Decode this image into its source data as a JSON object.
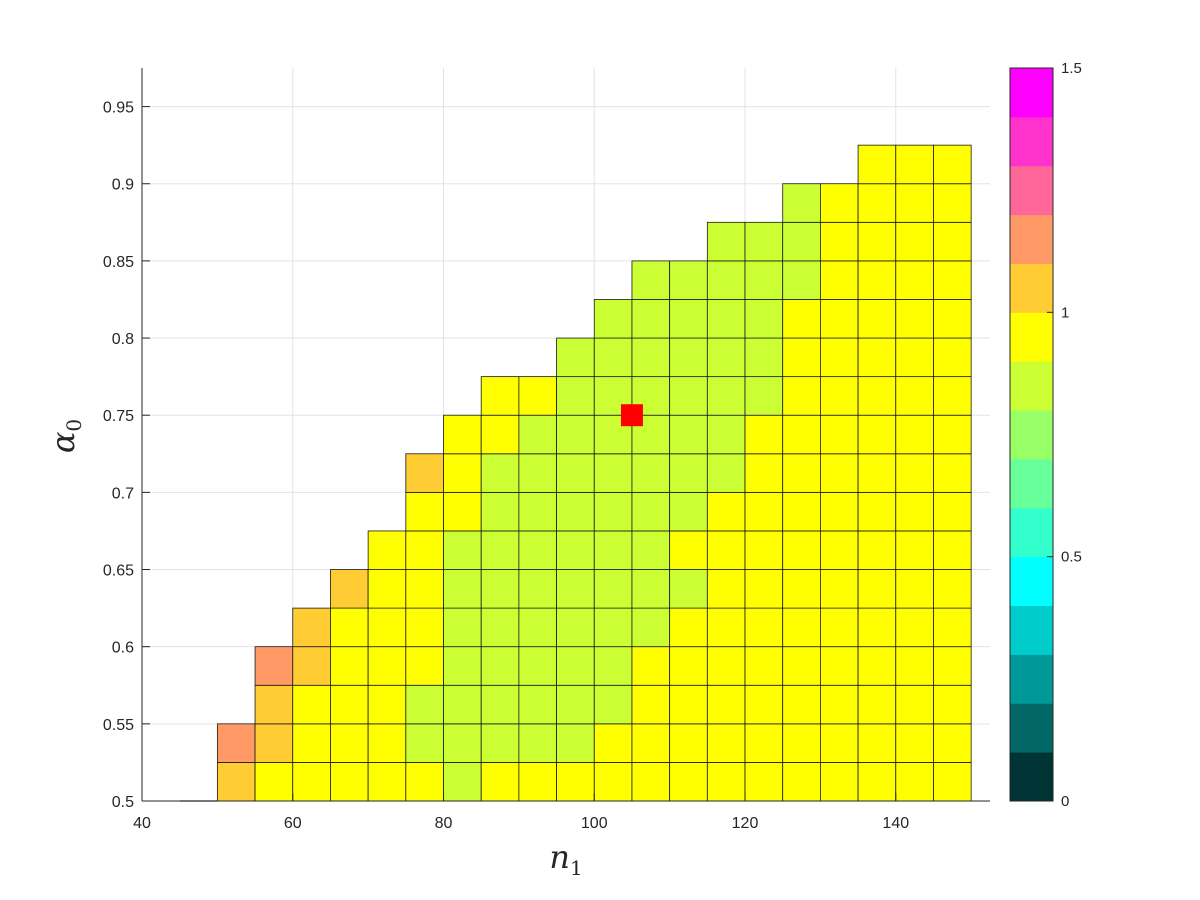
{
  "chart_data": {
    "type": "heatmap",
    "title": "",
    "xlabel": "n",
    "xlabel_sub": "1",
    "ylabel": "α",
    "ylabel_sub": "0",
    "xlim": [
      40,
      152.5
    ],
    "ylim": [
      0.5,
      0.975
    ],
    "xticks": [
      40,
      60,
      80,
      100,
      120,
      140
    ],
    "yticks": [
      0.5,
      0.55,
      0.6,
      0.65,
      0.7,
      0.75,
      0.8,
      0.85,
      0.9,
      0.95
    ],
    "grid": true,
    "cell_width": 5,
    "cell_height": 0.025,
    "x_centers": [
      52.5,
      57.5,
      62.5,
      67.5,
      72.5,
      77.5,
      82.5,
      87.5,
      92.5,
      97.5,
      102.5,
      107.5,
      112.5,
      117.5,
      122.5,
      127.5,
      132.5,
      137.5,
      142.5,
      147.5
    ],
    "rows": [
      {
        "alpha": 0.5125,
        "start": 50,
        "values": [
          1.05,
          0.95,
          0.95,
          0.95,
          0.95,
          0.95,
          0.85,
          0.95,
          0.95,
          0.95,
          0.95,
          0.95,
          0.95,
          0.95,
          0.95,
          0.95,
          0.95,
          0.95,
          0.95,
          0.95
        ]
      },
      {
        "alpha": 0.5375,
        "start": 50,
        "values": [
          1.15,
          1.05,
          0.95,
          0.95,
          0.95,
          0.85,
          0.85,
          0.85,
          0.85,
          0.85,
          0.95,
          0.95,
          0.95,
          0.95,
          0.95,
          0.95,
          0.95,
          0.95,
          0.95,
          0.95
        ]
      },
      {
        "alpha": 0.5625,
        "start": 55,
        "values": [
          1.05,
          0.95,
          0.95,
          0.95,
          0.85,
          0.85,
          0.85,
          0.85,
          0.85,
          0.85,
          0.95,
          0.95,
          0.95,
          0.95,
          0.95,
          0.95,
          0.95,
          0.95,
          0.95
        ]
      },
      {
        "alpha": 0.5875,
        "start": 55,
        "values": [
          1.15,
          1.05,
          0.95,
          0.95,
          0.95,
          0.85,
          0.85,
          0.85,
          0.85,
          0.85,
          0.95,
          0.95,
          0.95,
          0.95,
          0.95,
          0.95,
          0.95,
          0.95,
          0.95
        ]
      },
      {
        "alpha": 0.6125,
        "start": 60,
        "values": [
          1.05,
          0.95,
          0.95,
          0.95,
          0.85,
          0.85,
          0.85,
          0.85,
          0.85,
          0.85,
          0.95,
          0.95,
          0.95,
          0.95,
          0.95,
          0.95,
          0.95,
          0.95
        ]
      },
      {
        "alpha": 0.6375,
        "start": 65,
        "values": [
          1.05,
          0.95,
          0.95,
          0.85,
          0.85,
          0.85,
          0.85,
          0.85,
          0.85,
          0.85,
          0.95,
          0.95,
          0.95,
          0.95,
          0.95,
          0.95,
          0.95
        ]
      },
      {
        "alpha": 0.6625,
        "start": 70,
        "values": [
          0.95,
          0.95,
          0.85,
          0.85,
          0.85,
          0.85,
          0.85,
          0.85,
          0.95,
          0.95,
          0.95,
          0.95,
          0.95,
          0.95,
          0.95,
          0.95
        ]
      },
      {
        "alpha": 0.6875,
        "start": 75,
        "values": [
          0.95,
          0.95,
          0.85,
          0.85,
          0.85,
          0.85,
          0.85,
          0.85,
          0.95,
          0.95,
          0.95,
          0.95,
          0.95,
          0.95,
          0.95
        ]
      },
      {
        "alpha": 0.7125,
        "start": 75,
        "values": [
          1.05,
          0.95,
          0.85,
          0.85,
          0.85,
          0.85,
          0.85,
          0.85,
          0.85,
          0.95,
          0.95,
          0.95,
          0.95,
          0.95,
          0.95
        ]
      },
      {
        "alpha": 0.7375,
        "start": 80,
        "values": [
          0.95,
          0.95,
          0.85,
          0.85,
          0.85,
          0.85,
          0.85,
          0.85,
          0.95,
          0.95,
          0.95,
          0.95,
          0.95,
          0.95
        ]
      },
      {
        "alpha": 0.7625,
        "start": 85,
        "values": [
          0.95,
          0.95,
          0.85,
          0.85,
          0.85,
          0.85,
          0.85,
          0.85,
          0.95,
          0.95,
          0.95,
          0.95,
          0.95
        ]
      },
      {
        "alpha": 0.7875,
        "start": 95,
        "values": [
          0.85,
          0.85,
          0.85,
          0.85,
          0.85,
          0.85,
          0.95,
          0.95,
          0.95,
          0.95,
          0.95
        ]
      },
      {
        "alpha": 0.8125,
        "start": 100,
        "values": [
          0.85,
          0.85,
          0.85,
          0.85,
          0.85,
          0.95,
          0.95,
          0.95,
          0.95,
          0.95
        ]
      },
      {
        "alpha": 0.8375,
        "start": 105,
        "values": [
          0.85,
          0.85,
          0.85,
          0.85,
          0.85,
          0.95,
          0.95,
          0.95,
          0.95
        ]
      },
      {
        "alpha": 0.8625,
        "start": 115,
        "values": [
          0.85,
          0.85,
          0.85,
          0.95,
          0.95,
          0.95,
          0.95
        ]
      },
      {
        "alpha": 0.8875,
        "start": 125,
        "values": [
          0.85,
          0.95,
          0.95,
          0.95,
          0.95
        ]
      },
      {
        "alpha": 0.9125,
        "start": 135,
        "values": [
          0.95,
          0.95,
          0.95
        ]
      }
    ],
    "stub": {
      "x": [
        45,
        50
      ],
      "alpha": 0.5
    },
    "marker": {
      "x": 105,
      "y": 0.75,
      "color": "#ff0000"
    },
    "colorbar": {
      "lim": [
        0,
        1.5
      ],
      "ticks": [
        0,
        0.5,
        1,
        1.5
      ],
      "tick_labels": [
        "0",
        "0.5",
        "1",
        "1.5"
      ],
      "colors": [
        "#003333",
        "#006666",
        "#009999",
        "#00cccc",
        "#00ffff",
        "#33ffcc",
        "#66ff99",
        "#99ff66",
        "#ccff33",
        "#ffff00",
        "#ffcc33",
        "#ff9966",
        "#ff6699",
        "#ff33cc",
        "#ff00ff"
      ]
    }
  }
}
